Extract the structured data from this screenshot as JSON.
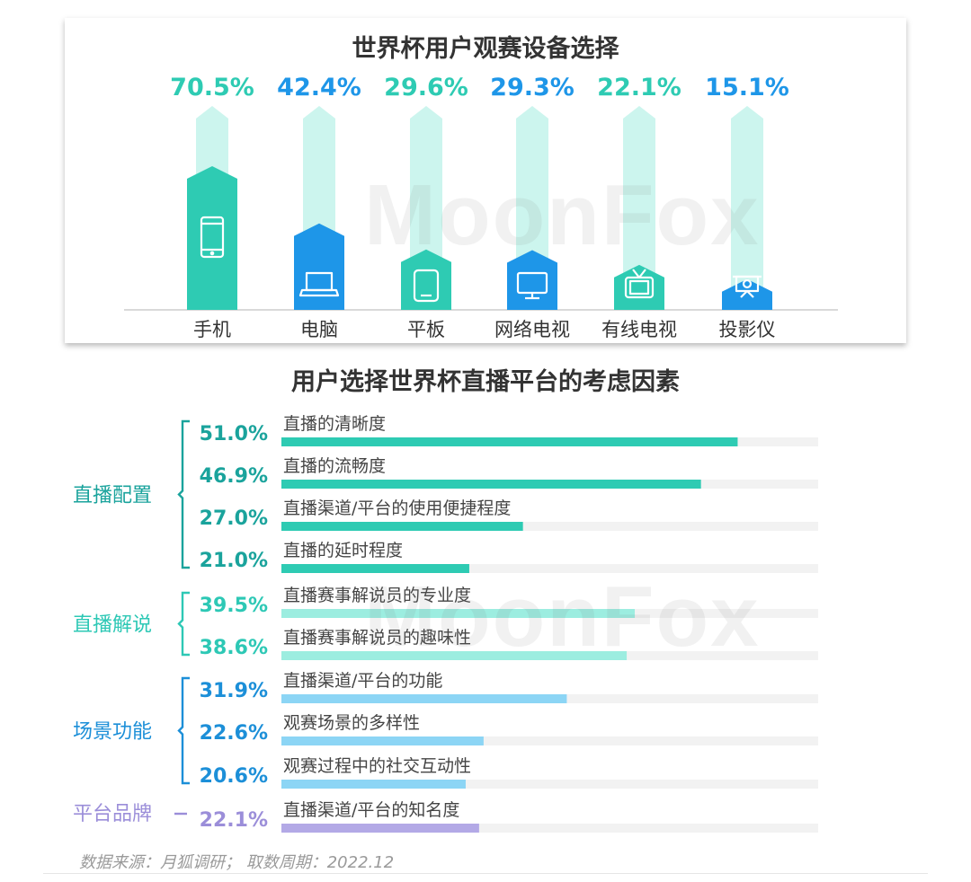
{
  "chart_data": [
    {
      "type": "bar",
      "title": "世界杯用户观赛设备选择",
      "categories": [
        "手机",
        "电脑",
        "平板",
        "网络电视",
        "有线电视",
        "投影仪"
      ],
      "values": [
        70.5,
        42.4,
        29.6,
        29.3,
        22.1,
        15.1
      ],
      "value_labels": [
        "70.5%",
        "42.4%",
        "29.6%",
        "29.3%",
        "22.1%",
        "15.1%"
      ],
      "icons": [
        "phone-icon",
        "laptop-icon",
        "tablet-icon",
        "monitor-icon",
        "tv-icon",
        "projector-icon"
      ],
      "colors": [
        "#2ecbb3",
        "#1e96e8",
        "#2ecbb3",
        "#1e96e8",
        "#2ecbb3",
        "#1e96e8"
      ],
      "track_color": "#ccf5ee",
      "ylim": [
        0,
        100
      ],
      "grid": false
    },
    {
      "type": "bar",
      "orientation": "horizontal",
      "title": "用户选择世界杯直播平台的考虑因素",
      "groups": [
        {
          "name": "直播配置",
          "color": "#1aa39c",
          "bar_color": "#2ecbb3",
          "bracket": true
        },
        {
          "name": "直播解说",
          "color": "#2dc8b5",
          "bar_color": "#9cede0",
          "bracket": true
        },
        {
          "name": "场景功能",
          "color": "#1c8fd8",
          "bar_color": "#8cd5f5",
          "bracket": true
        },
        {
          "name": "平台品牌",
          "color": "#9b8ed9",
          "bar_color": "#b3a9e6",
          "bracket": false
        }
      ],
      "items": [
        {
          "label": "直播的清晰度",
          "value": 51.0,
          "value_label": "51.0%",
          "group": 0
        },
        {
          "label": "直播的流畅度",
          "value": 46.9,
          "value_label": "46.9%",
          "group": 0
        },
        {
          "label": "直播渠道/平台的使用便捷程度",
          "value": 27.0,
          "value_label": "27.0%",
          "group": 0
        },
        {
          "label": "直播的延时程度",
          "value": 21.0,
          "value_label": "21.0%",
          "group": 0
        },
        {
          "label": "直播赛事解说员的专业度",
          "value": 39.5,
          "value_label": "39.5%",
          "group": 1
        },
        {
          "label": "直播赛事解说员的趣味性",
          "value": 38.6,
          "value_label": "38.6%",
          "group": 1
        },
        {
          "label": "直播渠道/平台的功能",
          "value": 31.9,
          "value_label": "31.9%",
          "group": 2
        },
        {
          "label": "观赛场景的多样性",
          "value": 22.6,
          "value_label": "22.6%",
          "group": 2
        },
        {
          "label": "观赛过程中的社交互动性",
          "value": 20.6,
          "value_label": "20.6%",
          "group": 2
        },
        {
          "label": "直播渠道/平台的知名度",
          "value": 22.1,
          "value_label": "22.1%",
          "group": 3
        }
      ],
      "track_color": "#f2f2f2",
      "xlim": [
        0,
        60
      ],
      "grid": false
    }
  ],
  "watermark": "MoonFox",
  "footer": "数据来源：月狐调研； 取数周期：2022.12"
}
